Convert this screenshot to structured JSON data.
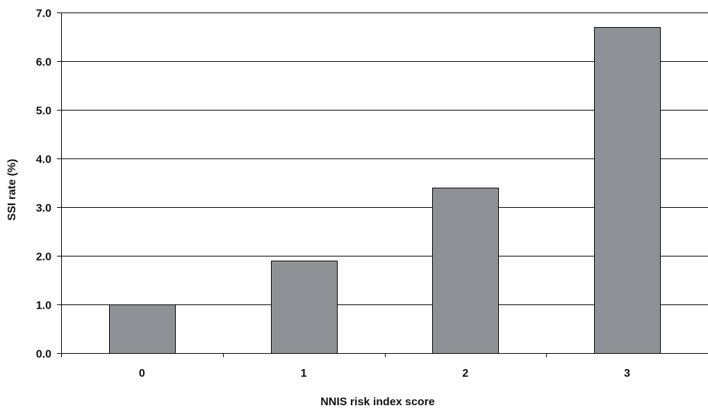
{
  "chart_data": {
    "type": "bar",
    "title": "",
    "xlabel": "NNIS risk index score",
    "ylabel": "SSI rate (%)",
    "categories": [
      "0",
      "1",
      "2",
      "3"
    ],
    "values": [
      1.0,
      1.9,
      3.4,
      6.7
    ],
    "ylim": [
      0,
      7
    ],
    "yticks": [
      "0.0",
      "1.0",
      "2.0",
      "3.0",
      "4.0",
      "5.0",
      "6.0",
      "7.0"
    ],
    "grid": "horizontal",
    "bar_color": "#8e9196",
    "bar_stroke": "#000000"
  }
}
